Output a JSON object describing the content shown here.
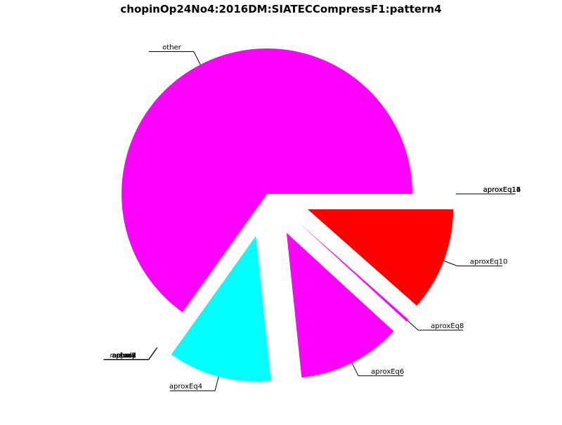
{
  "chart_data": {
    "type": "pie",
    "title": "chopinOp24No4:2016DM:SIATECCompressF1:pattern4",
    "slices": [
      {
        "label": "other",
        "value": 65.0,
        "color": "#ff00ff",
        "explode": false
      },
      {
        "label": "aprox",
        "value": 0.0,
        "color": "#00ffff",
        "explode": true
      },
      {
        "label": "bass",
        "value": 0.0,
        "color": "#00ffff",
        "explode": true
      },
      {
        "label": "chord",
        "value": 0.0,
        "color": "#00ffff",
        "explode": true
      },
      {
        "label": "melody",
        "value": 0.0,
        "color": "#00ffff",
        "explode": true
      },
      {
        "label": "aprox2",
        "value": 0.0,
        "color": "#00ffff",
        "explode": true
      },
      {
        "label": "aprox3",
        "value": 0.0,
        "color": "#00ffff",
        "explode": true
      },
      {
        "label": "aproxEq4",
        "value": 11.5,
        "color": "#00ffff",
        "explode": true
      },
      {
        "label": "aproxEq6",
        "value": 11.5,
        "color": "#ff00ff",
        "explode": true
      },
      {
        "label": "aproxEq8",
        "value": 0.3,
        "color": "#ff00ff",
        "explode": true
      },
      {
        "label": "aproxEq10",
        "value": 11.5,
        "color": "#ff0000",
        "explode": true
      },
      {
        "label": "aproxEq12",
        "value": 0.0,
        "color": "#ff0000",
        "explode": true
      },
      {
        "label": "aproxEq14",
        "value": 0.0,
        "color": "#ff0000",
        "explode": true
      },
      {
        "label": "aproxEq16",
        "value": 0.0,
        "color": "#ff0000",
        "explode": true
      }
    ]
  }
}
